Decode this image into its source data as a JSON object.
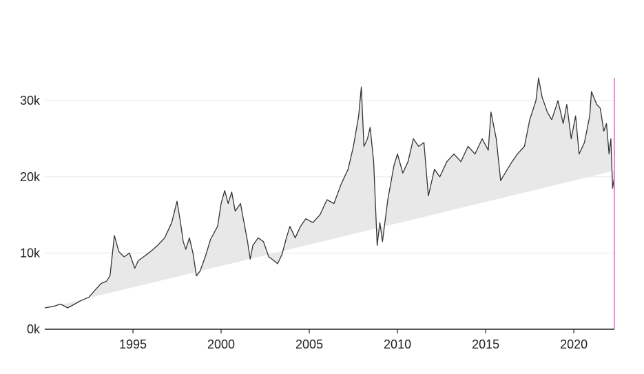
{
  "chart_data": {
    "type": "area",
    "title": "",
    "xlabel": "",
    "ylabel": "",
    "xlim": [
      1990.0,
      2022.3
    ],
    "ylim": [
      0,
      33000
    ],
    "x_ticks": [
      1995,
      2000,
      2005,
      2010,
      2015,
      2020
    ],
    "x_tick_labels": [
      "1995",
      "2000",
      "2005",
      "2010",
      "2015",
      "2020"
    ],
    "y_ticks": [
      0,
      10000,
      20000,
      30000
    ],
    "y_tick_labels": [
      "0k",
      "10k",
      "20k",
      "30k"
    ],
    "grid": "horizontal",
    "baseline": {
      "x": [
        1990.0,
        2022.3
      ],
      "y": [
        2700,
        20800
      ]
    },
    "marker": {
      "x": 2022.3,
      "color": "#e58ae6"
    },
    "series": [
      {
        "color": "#333333",
        "fill": "#e8e8e8",
        "points": [
          [
            1990.0,
            2800
          ],
          [
            1990.5,
            3000
          ],
          [
            1990.9,
            3300
          ],
          [
            1991.3,
            2800
          ],
          [
            1991.7,
            3300
          ],
          [
            1992.0,
            3700
          ],
          [
            1992.5,
            4200
          ],
          [
            1992.8,
            5000
          ],
          [
            1993.2,
            6000
          ],
          [
            1993.5,
            6300
          ],
          [
            1993.7,
            7000
          ],
          [
            1993.95,
            12300
          ],
          [
            1994.2,
            10200
          ],
          [
            1994.5,
            9500
          ],
          [
            1994.8,
            10000
          ],
          [
            1995.1,
            8000
          ],
          [
            1995.3,
            9000
          ],
          [
            1995.6,
            9500
          ],
          [
            1996.0,
            10200
          ],
          [
            1996.4,
            11000
          ],
          [
            1996.8,
            12000
          ],
          [
            1997.2,
            14000
          ],
          [
            1997.5,
            16800
          ],
          [
            1997.7,
            14000
          ],
          [
            1997.85,
            11500
          ],
          [
            1998.0,
            10500
          ],
          [
            1998.2,
            12000
          ],
          [
            1998.4,
            10000
          ],
          [
            1998.6,
            7000
          ],
          [
            1998.8,
            7600
          ],
          [
            1999.1,
            9500
          ],
          [
            1999.4,
            11800
          ],
          [
            1999.8,
            13500
          ],
          [
            2000.0,
            16500
          ],
          [
            2000.2,
            18200
          ],
          [
            2000.4,
            16500
          ],
          [
            2000.6,
            18000
          ],
          [
            2000.8,
            15500
          ],
          [
            2001.1,
            16500
          ],
          [
            2001.3,
            14000
          ],
          [
            2001.5,
            11500
          ],
          [
            2001.65,
            9200
          ],
          [
            2001.8,
            11000
          ],
          [
            2002.1,
            12000
          ],
          [
            2002.4,
            11500
          ],
          [
            2002.7,
            9500
          ],
          [
            2003.0,
            9000
          ],
          [
            2003.2,
            8600
          ],
          [
            2003.45,
            9800
          ],
          [
            2003.7,
            12000
          ],
          [
            2003.9,
            13500
          ],
          [
            2004.2,
            12000
          ],
          [
            2004.5,
            13500
          ],
          [
            2004.8,
            14500
          ],
          [
            2005.2,
            14000
          ],
          [
            2005.6,
            15000
          ],
          [
            2006.0,
            17000
          ],
          [
            2006.4,
            16500
          ],
          [
            2006.8,
            19000
          ],
          [
            2007.2,
            21000
          ],
          [
            2007.5,
            24000
          ],
          [
            2007.8,
            28000
          ],
          [
            2007.95,
            31800
          ],
          [
            2008.1,
            24000
          ],
          [
            2008.3,
            25000
          ],
          [
            2008.45,
            26500
          ],
          [
            2008.65,
            22000
          ],
          [
            2008.85,
            11000
          ],
          [
            2009.0,
            14000
          ],
          [
            2009.15,
            11500
          ],
          [
            2009.45,
            17000
          ],
          [
            2009.8,
            21500
          ],
          [
            2010.0,
            23000
          ],
          [
            2010.3,
            20500
          ],
          [
            2010.6,
            22000
          ],
          [
            2010.9,
            25000
          ],
          [
            2011.2,
            24000
          ],
          [
            2011.5,
            24500
          ],
          [
            2011.75,
            17500
          ],
          [
            2012.1,
            21000
          ],
          [
            2012.4,
            20000
          ],
          [
            2012.8,
            22000
          ],
          [
            2013.2,
            23000
          ],
          [
            2013.6,
            22000
          ],
          [
            2014.0,
            24000
          ],
          [
            2014.4,
            23000
          ],
          [
            2014.8,
            25000
          ],
          [
            2015.15,
            23500
          ],
          [
            2015.3,
            28500
          ],
          [
            2015.6,
            25000
          ],
          [
            2015.85,
            19500
          ],
          [
            2016.1,
            20500
          ],
          [
            2016.5,
            22000
          ],
          [
            2016.8,
            23000
          ],
          [
            2017.2,
            24000
          ],
          [
            2017.5,
            27500
          ],
          [
            2017.85,
            30000
          ],
          [
            2018.0,
            33000
          ],
          [
            2018.2,
            30500
          ],
          [
            2018.5,
            28500
          ],
          [
            2018.75,
            27500
          ],
          [
            2019.1,
            30000
          ],
          [
            2019.4,
            27000
          ],
          [
            2019.6,
            29500
          ],
          [
            2019.85,
            25000
          ],
          [
            2020.1,
            28000
          ],
          [
            2020.3,
            23000
          ],
          [
            2020.6,
            24500
          ],
          [
            2020.9,
            28000
          ],
          [
            2021.0,
            31200
          ],
          [
            2021.3,
            29500
          ],
          [
            2021.5,
            29000
          ],
          [
            2021.7,
            26000
          ],
          [
            2021.85,
            27000
          ],
          [
            2022.0,
            23000
          ],
          [
            2022.1,
            25000
          ],
          [
            2022.2,
            18500
          ],
          [
            2022.3,
            20000
          ]
        ]
      }
    ]
  }
}
